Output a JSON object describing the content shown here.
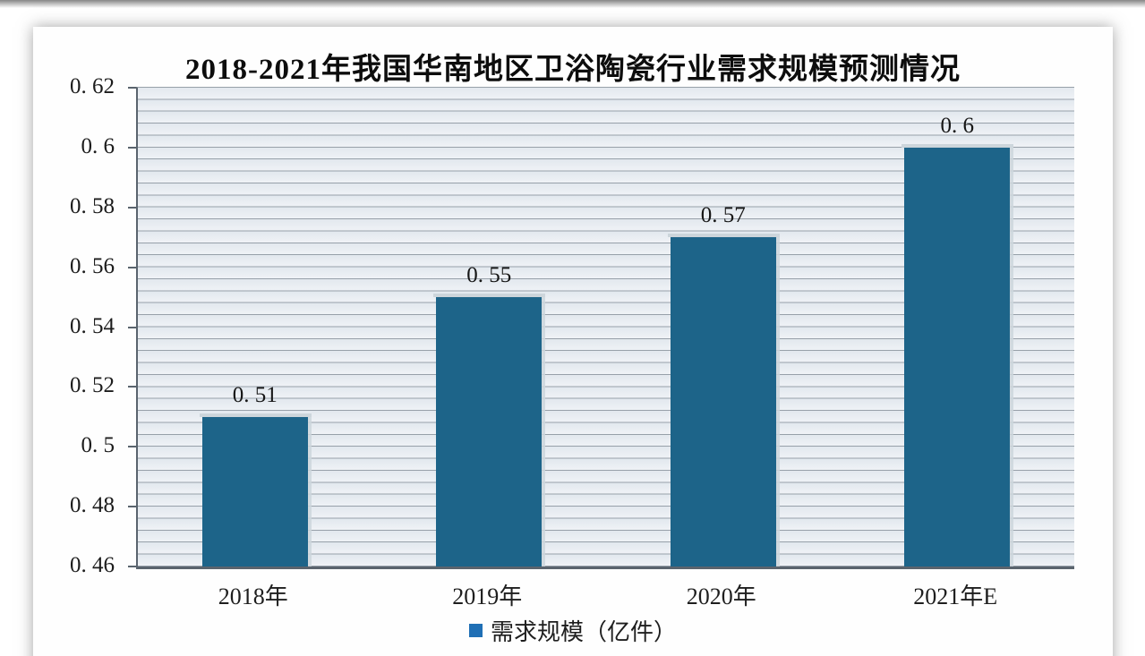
{
  "window": {
    "background": "#ffffff"
  },
  "colors": {
    "bar": "#1d6489",
    "bar_cap": "#ccd5db",
    "legend_marker": "#1f6fb5",
    "grid_line": "#97a0a9",
    "plot_band_light": "#eff2f6",
    "plot_band_dark": "#e2e8ee",
    "axis": "#5a646e",
    "text": "#1a1a1a"
  },
  "chart_data": {
    "type": "bar",
    "title": "2018-2021年我国华南地区卫浴陶瓷行业需求规模预测情况",
    "categories": [
      "2018年",
      "2019年",
      "2020年",
      "2021年E"
    ],
    "values": [
      0.51,
      0.55,
      0.57,
      0.6
    ],
    "value_labels": [
      "0. 51",
      "0. 55",
      "0. 57",
      "0. 6"
    ],
    "series_name": "需求规模（亿件）",
    "xlabel": "",
    "ylabel": "",
    "ylim": [
      0.46,
      0.62
    ],
    "y_major_step": 0.02,
    "y_minor_step": 0.004,
    "y_tick_labels": [
      "0. 62",
      "0. 6",
      "0. 58",
      "0. 56",
      "0. 54",
      "0. 52",
      "0. 5",
      "0. 48",
      "0. 46"
    ],
    "grid": "horizontal, minor gridlines on",
    "legend_position": "bottom-center",
    "bar_width_fraction_of_slot": 0.45
  }
}
